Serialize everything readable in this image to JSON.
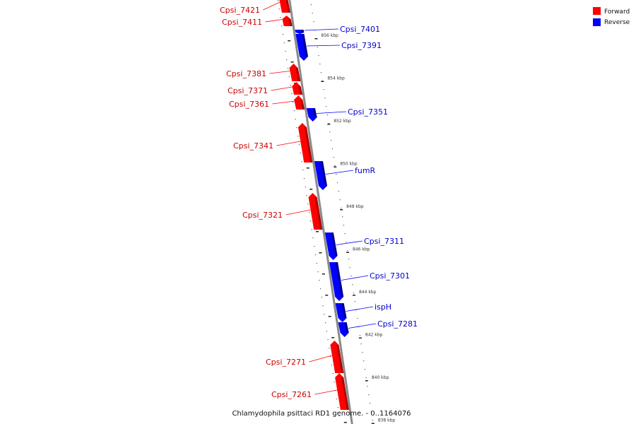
{
  "legend": {
    "forward_label": "Forward",
    "reverse_label": "Reverse",
    "forward_color": "#ff0000",
    "reverse_color": "#0000ff"
  },
  "caption": "Chlamydophila psittaci RD1 genome. - 0..1164076",
  "genes": [
    {
      "label": "Cpsi_7421",
      "strand": "forward"
    },
    {
      "label": "Cpsi_7411",
      "strand": "forward"
    },
    {
      "label": "Cpsi_7401",
      "strand": "reverse"
    },
    {
      "label": "Cpsi_7391",
      "strand": "reverse"
    },
    {
      "label": "Cpsi_7381",
      "strand": "forward"
    },
    {
      "label": "Cpsi_7371",
      "strand": "forward"
    },
    {
      "label": "Cpsi_7361",
      "strand": "forward"
    },
    {
      "label": "Cpsi_7351",
      "strand": "reverse"
    },
    {
      "label": "Cpsi_7341",
      "strand": "forward"
    },
    {
      "label": "fumR",
      "strand": "reverse"
    },
    {
      "label": "Cpsi_7321",
      "strand": "forward"
    },
    {
      "label": "Cpsi_7311",
      "strand": "reverse"
    },
    {
      "label": "Cpsi_7301",
      "strand": "reverse"
    },
    {
      "label": "ispH",
      "strand": "reverse"
    },
    {
      "label": "Cpsi_7281",
      "strand": "reverse"
    },
    {
      "label": "Cpsi_7271",
      "strand": "forward"
    },
    {
      "label": "Cpsi_7261",
      "strand": "forward"
    }
  ],
  "ticks": [
    "856 kbp",
    "854 kbp",
    "852 kbp",
    "850 kbp",
    "848 kbp",
    "846 kbp",
    "844 kbp",
    "842 kbp",
    "840 kbp",
    "838 kbp"
  ]
}
